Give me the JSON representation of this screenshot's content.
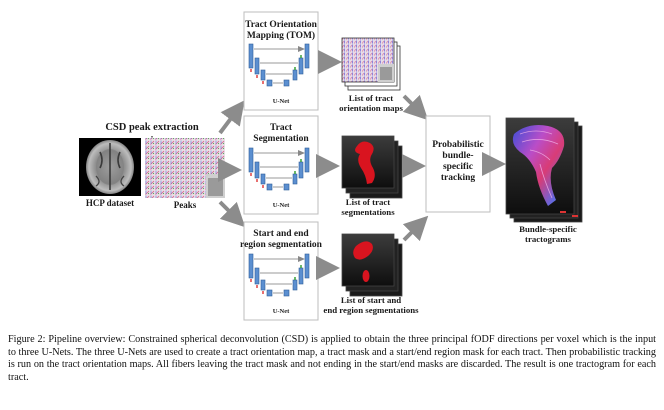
{
  "diagram": {
    "input": {
      "title": "CSD peak extraction",
      "brain_label": "HCP dataset",
      "peaks_label": "Peaks"
    },
    "unet_label": "U-Net",
    "branches": [
      {
        "title_line1": "Tract Orientation",
        "title_line2": "Mapping (TOM)",
        "out_line1": "List of tract",
        "out_line2": "orientation maps"
      },
      {
        "title_line1": "Tract",
        "title_line2": "Segmentation",
        "out_line1": "List of tract",
        "out_line2": "segmentations"
      },
      {
        "title_line1": "Start and end",
        "title_line2": "region segmentation",
        "out_line1": "List of start and",
        "out_line2": "end region segmentations"
      }
    ],
    "tracking": {
      "line1": "Probabilistic",
      "line2": "bundle-",
      "line3": "specific",
      "line4": "tracking"
    },
    "output": {
      "line1": "Bundle-specific",
      "line2": "tractograms"
    },
    "colors": {
      "arrow": "#8c8c8c",
      "unet_block": "#5b8fd0",
      "unet_edge": "#2f5f9a",
      "skip": "#9a9a9a"
    }
  },
  "caption": "Figure 2: Pipeline overview: Constrained spherical deconvolution (CSD) is applied to obtain the three principal fODF directions per voxel which is the input to three U-Nets. The three U-Nets are used to create a tract orientation map, a tract mask and a start/end region mask for each tract. Then probabilistic tracking is run on the tract orientation maps. All fibers leaving the tract mask and not ending in the start/end masks are discarded. The result is one tractogram for each tract."
}
